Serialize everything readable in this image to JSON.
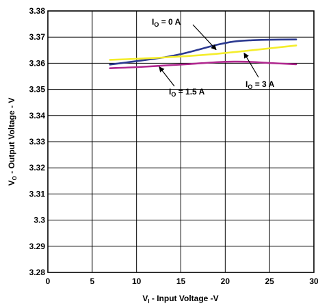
{
  "chart_data": {
    "type": "line",
    "xlabel": {
      "main": "V",
      "sub": "I",
      "rest": " - Input Voltage -V"
    },
    "ylabel": {
      "main": "V",
      "sub": "O",
      "rest": " - Output Voltage - V"
    },
    "xlim": [
      0,
      30
    ],
    "ylim": [
      3.28,
      3.38
    ],
    "xticks": [
      0,
      5,
      10,
      15,
      20,
      25,
      30
    ],
    "xtick_labels": [
      "0",
      "5",
      "10",
      "15",
      "20",
      "25",
      "30"
    ],
    "yticks": [
      3.28,
      3.29,
      3.3,
      3.31,
      3.32,
      3.33,
      3.34,
      3.35,
      3.36,
      3.37,
      3.38
    ],
    "ytick_labels": [
      "3.28",
      "3.29",
      "3.3",
      "3.31",
      "3.32",
      "3.33",
      "3.34",
      "3.35",
      "3.36",
      "3.37",
      "3.38"
    ],
    "grid": true,
    "series": [
      {
        "name": "I_O = 0 A",
        "color": "#2b3990",
        "x": [
          7,
          10,
          13,
          15,
          17,
          19,
          21,
          23,
          25,
          28
        ],
        "y": [
          3.3595,
          3.3608,
          3.3622,
          3.3635,
          3.3652,
          3.367,
          3.3683,
          3.3688,
          3.369,
          3.3691
        ]
      },
      {
        "name": "I_O = 3 A",
        "color": "#f4ed2a",
        "x": [
          7,
          10,
          13,
          16,
          19,
          22,
          25,
          28
        ],
        "y": [
          3.3613,
          3.3617,
          3.3622,
          3.3628,
          3.3636,
          3.3646,
          3.3657,
          3.3668
        ]
      },
      {
        "name": "I_O = 1.5 A",
        "color": "#b0288f",
        "x": [
          7,
          10,
          13,
          16,
          19,
          21,
          23,
          25,
          28
        ],
        "y": [
          3.3581,
          3.3585,
          3.3591,
          3.3597,
          3.3604,
          3.3606,
          3.3605,
          3.3601,
          3.3596
        ]
      }
    ],
    "annotations": [
      {
        "main": "I",
        "sub": "O",
        "rest": " = 0 A"
      },
      {
        "main": "I",
        "sub": "O",
        "rest": " = 1.5 A"
      },
      {
        "main": "I",
        "sub": "O",
        "rest": " = 3 A"
      }
    ]
  }
}
